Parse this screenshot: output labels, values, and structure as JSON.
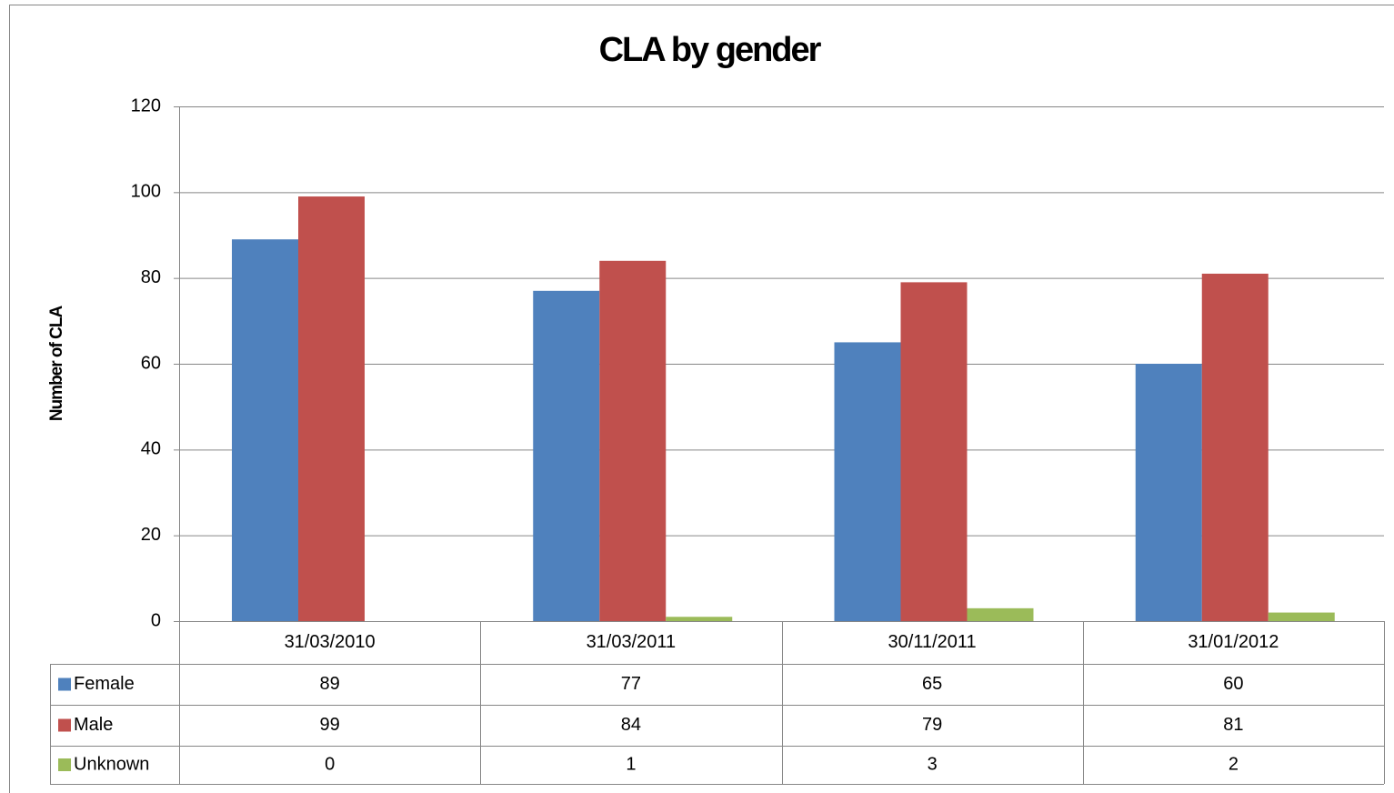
{
  "chart_data": {
    "type": "bar",
    "title": "CLA by gender",
    "y_label": "Number of CLA",
    "categories": [
      "31/03/2010",
      "31/03/2011",
      "30/11/2011",
      "31/01/2012"
    ],
    "series": [
      {
        "name": "Female",
        "color": "#4f81bd",
        "values": [
          89,
          77,
          65,
          60
        ]
      },
      {
        "name": "Male",
        "color": "#c0504d",
        "values": [
          99,
          84,
          79,
          81
        ]
      },
      {
        "name": "Unknown",
        "color": "#9bbb59",
        "values": [
          0,
          1,
          3,
          2
        ]
      }
    ],
    "ylim": [
      0,
      120
    ],
    "yticks": [
      0,
      20,
      40,
      60,
      80,
      100,
      120
    ],
    "grid": true,
    "data_table": true
  }
}
